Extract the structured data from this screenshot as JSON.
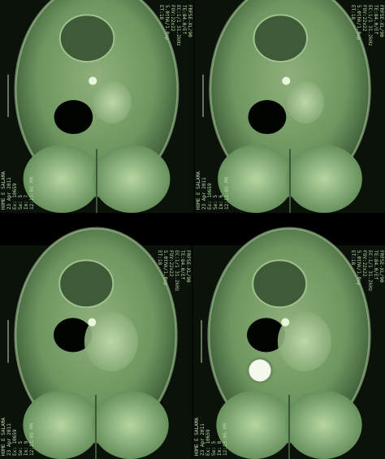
{
  "panels": [
    {
      "right_labels": [
        "FRFSE-XL/90",
        "TE:84.0/Ef",
        "EC:1/1 31.2kHz",
        "FOV:22x22",
        "5.0thk/1.0sp",
        "ET:18"
      ],
      "left_labels": [
        "HOME E SALAMA",
        "23 Apr 2011",
        "Ex: 10659",
        "Se: 5",
        "Im: 7",
        "12:13:05 PM"
      ]
    },
    {
      "right_labels": [
        "FRFSE-XL/90",
        "TE:84.0/Ef",
        "EC:1/1 31.2kHz",
        "FOV:22x22",
        "5.0thk/1.0sp",
        "ET:18"
      ],
      "left_labels": [
        "HOME E SALAMA",
        "23 Apr 2011",
        "Ex: 10659",
        "Se: 5",
        "Im: 6",
        "12:13:05 PM"
      ]
    },
    {
      "right_labels": [
        "FRFSE-XL/90",
        "TE:84.0/Ef",
        "EC:1/1 31.2kHz",
        "FOV:22x22",
        "5.0thk/1.0sp",
        "ET:18"
      ],
      "left_labels": [
        "HOME E SALAMA",
        "23 Apr 2011",
        "Ex: 10659",
        "Se: 5",
        "Im: 9",
        "12:13:05 PM"
      ]
    },
    {
      "right_labels": [
        "FRFSE-XL/90",
        "TE:84.0/Ef",
        "EC:1/1 31.2kHz",
        "FOV:22x22",
        "5.0thk/1.0sp",
        "ET:18"
      ],
      "left_labels": [
        "HOME E SALAMA",
        "23 Apr 2011",
        "Ex: 10659",
        "Se: 5",
        "Im: 8",
        "12:13:05 PM"
      ]
    }
  ]
}
